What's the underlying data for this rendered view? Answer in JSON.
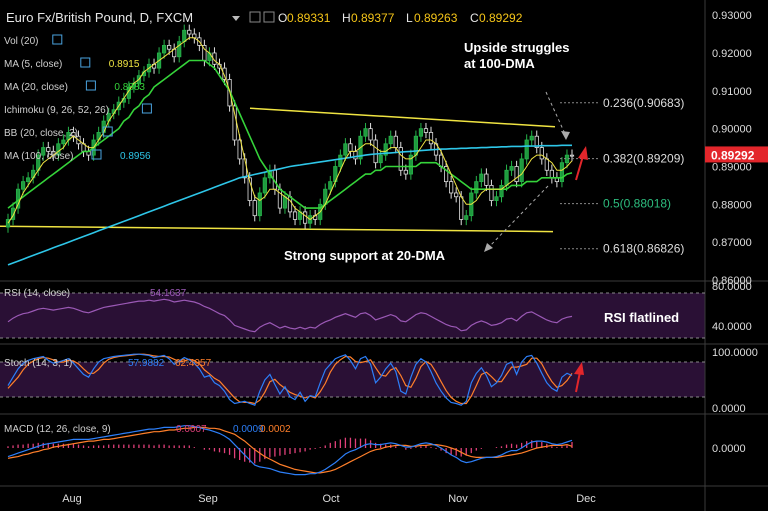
{
  "header": {
    "title": "Euro Fx/British Pound, D, FXCM",
    "ohlc": {
      "o_label": "O",
      "o": "0.89331",
      "h_label": "H",
      "h": "0.89377",
      "l_label": "L",
      "l": "0.89263",
      "c_label": "C",
      "c": "0.89292"
    }
  },
  "indicators": [
    {
      "label": "Vol (20)",
      "value": "",
      "color": "#cfcfcf"
    },
    {
      "label": "MA (5, close)",
      "value": "0.8915",
      "color": "#f0e442"
    },
    {
      "label": "MA (20, close)",
      "value": "0.8883",
      "color": "#35d33a"
    },
    {
      "label": "Ichimoku (9, 26, 52, 26)",
      "value": "",
      "color": "#cfcfcf"
    },
    {
      "label": "BB (20, close, 2)",
      "value": "",
      "color": "#cfcfcf"
    },
    {
      "label": "MA (100, close)",
      "value": "0.8956",
      "color": "#2ec6e8"
    }
  ],
  "annotations": {
    "upside_line1": "Upside struggles",
    "upside_line2": "at 100-DMA",
    "support": "Strong support at 20-DMA",
    "rsi_flat": "RSI flatlined"
  },
  "fib_levels": [
    {
      "label": "0.236(0.90683)",
      "value": 0.90683,
      "color": "#dddddd"
    },
    {
      "label": "0.382(0.89209)",
      "value": 0.89209,
      "color": "#dddddd"
    },
    {
      "label": "0.5(0.88018)",
      "value": 0.88018,
      "color": "#2dbd7e"
    },
    {
      "label": "0.618(0.86826)",
      "value": 0.86826,
      "color": "#dddddd"
    }
  ],
  "price_badge": {
    "text": "0.89292",
    "value": 0.89292,
    "color": "#e3262b"
  },
  "rsi_panel": {
    "label": "RSI (14, close)",
    "value": "54.1637",
    "ticks": [
      "80.0000",
      "40.0000"
    ],
    "color": "#9b59b6"
  },
  "stoch_panel": {
    "label": "Stoch (14, 3, 1)",
    "k": "57.9882",
    "d": "62.4957",
    "ticks": [
      "100.0000",
      "0.0000"
    ],
    "k_color": "#2d7ff9",
    "d_color": "#ff7f2a"
  },
  "macd_panel": {
    "label": "MACD (12, 26, close, 9)",
    "hist": "0.0007",
    "macd": "0.0009",
    "signal": "0.0002",
    "ticks": [
      "0.0000"
    ],
    "hist_color": "#e0407a",
    "macd_color": "#2d7ff9",
    "signal_color": "#ff7f2a"
  },
  "chart_data": {
    "type": "candlestick",
    "symbol": "EUR/GBP",
    "timeframe": "D",
    "x_ticks": [
      "Aug",
      "Sep",
      "Oct",
      "Nov",
      "Dec"
    ],
    "y_ticks": [
      "0.93000",
      "0.92000",
      "0.91000",
      "0.90000",
      "0.89000",
      "0.88000",
      "0.87000",
      "0.86000"
    ],
    "ylim": [
      0.86,
      0.934
    ],
    "close": [
      0.876,
      0.879,
      0.884,
      0.886,
      0.887,
      0.889,
      0.893,
      0.895,
      0.894,
      0.893,
      0.896,
      0.897,
      0.899,
      0.898,
      0.896,
      0.894,
      0.893,
      0.897,
      0.899,
      0.902,
      0.904,
      0.905,
      0.907,
      0.908,
      0.911,
      0.912,
      0.914,
      0.915,
      0.917,
      0.916,
      0.92,
      0.922,
      0.921,
      0.919,
      0.923,
      0.926,
      0.925,
      0.924,
      0.922,
      0.918,
      0.92,
      0.917,
      0.916,
      0.913,
      0.906,
      0.897,
      0.892,
      0.887,
      0.881,
      0.877,
      0.883,
      0.887,
      0.889,
      0.884,
      0.879,
      0.882,
      0.878,
      0.876,
      0.878,
      0.875,
      0.877,
      0.876,
      0.88,
      0.884,
      0.886,
      0.89,
      0.893,
      0.896,
      0.894,
      0.892,
      0.898,
      0.9,
      0.897,
      0.891,
      0.893,
      0.896,
      0.898,
      0.895,
      0.889,
      0.888,
      0.893,
      0.898,
      0.9,
      0.899,
      0.896,
      0.893,
      0.89,
      0.886,
      0.883,
      0.882,
      0.876,
      0.877,
      0.883,
      0.886,
      0.888,
      0.885,
      0.881,
      0.882,
      0.885,
      0.889,
      0.89,
      0.886,
      0.892,
      0.897,
      0.898,
      0.895,
      0.892,
      0.889,
      0.887,
      0.886,
      0.891,
      0.893,
      0.8929
    ],
    "ma5": [
      0.875,
      0.877,
      0.88,
      0.883,
      0.885,
      0.887,
      0.889,
      0.891,
      0.892,
      0.893,
      0.894,
      0.895,
      0.897,
      0.898,
      0.897,
      0.896,
      0.895,
      0.895,
      0.897,
      0.899,
      0.902,
      0.904,
      0.906,
      0.908,
      0.91,
      0.912,
      0.913,
      0.915,
      0.916,
      0.917,
      0.918,
      0.919,
      0.92,
      0.921,
      0.922,
      0.923,
      0.924,
      0.924,
      0.923,
      0.921,
      0.92,
      0.918,
      0.917,
      0.914,
      0.91,
      0.904,
      0.898,
      0.892,
      0.886,
      0.882,
      0.881,
      0.882,
      0.884,
      0.884,
      0.883,
      0.882,
      0.881,
      0.879,
      0.878,
      0.877,
      0.876,
      0.877,
      0.878,
      0.88,
      0.883,
      0.886,
      0.889,
      0.892,
      0.894,
      0.894,
      0.895,
      0.896,
      0.896,
      0.895,
      0.894,
      0.894,
      0.895,
      0.895,
      0.893,
      0.892,
      0.892,
      0.893,
      0.895,
      0.897,
      0.897,
      0.896,
      0.894,
      0.891,
      0.888,
      0.885,
      0.882,
      0.88,
      0.88,
      0.881,
      0.883,
      0.884,
      0.884,
      0.884,
      0.884,
      0.885,
      0.886,
      0.887,
      0.888,
      0.89,
      0.892,
      0.893,
      0.893,
      0.892,
      0.891,
      0.889,
      0.889,
      0.89,
      0.8915
    ],
    "ma20": [
      0.879,
      0.88,
      0.881,
      0.882,
      0.883,
      0.884,
      0.885,
      0.886,
      0.887,
      0.888,
      0.889,
      0.89,
      0.891,
      0.892,
      0.893,
      0.894,
      0.894,
      0.895,
      0.896,
      0.897,
      0.898,
      0.899,
      0.9,
      0.902,
      0.903,
      0.905,
      0.906,
      0.908,
      0.909,
      0.911,
      0.912,
      0.913,
      0.914,
      0.915,
      0.916,
      0.917,
      0.918,
      0.918,
      0.918,
      0.918,
      0.917,
      0.916,
      0.914,
      0.912,
      0.91,
      0.907,
      0.904,
      0.901,
      0.898,
      0.895,
      0.892,
      0.89,
      0.888,
      0.886,
      0.884,
      0.883,
      0.882,
      0.881,
      0.88,
      0.879,
      0.879,
      0.879,
      0.879,
      0.88,
      0.881,
      0.882,
      0.883,
      0.884,
      0.885,
      0.886,
      0.887,
      0.888,
      0.888,
      0.889,
      0.889,
      0.89,
      0.89,
      0.89,
      0.89,
      0.89,
      0.89,
      0.89,
      0.891,
      0.891,
      0.891,
      0.891,
      0.89,
      0.889,
      0.888,
      0.887,
      0.886,
      0.885,
      0.884,
      0.884,
      0.884,
      0.884,
      0.884,
      0.884,
      0.884,
      0.884,
      0.885,
      0.885,
      0.885,
      0.886,
      0.886,
      0.886,
      0.887,
      0.887,
      0.887,
      0.887,
      0.887,
      0.888,
      0.8883
    ],
    "ma100": [
      0.864,
      0.8645,
      0.865,
      0.8655,
      0.866,
      0.8665,
      0.867,
      0.8675,
      0.868,
      0.8685,
      0.869,
      0.8695,
      0.87,
      0.8705,
      0.871,
      0.8715,
      0.872,
      0.8725,
      0.873,
      0.8735,
      0.874,
      0.8745,
      0.875,
      0.8755,
      0.876,
      0.8765,
      0.877,
      0.8775,
      0.878,
      0.8785,
      0.879,
      0.8795,
      0.88,
      0.8805,
      0.881,
      0.8815,
      0.882,
      0.8825,
      0.883,
      0.8835,
      0.884,
      0.8845,
      0.885,
      0.8855,
      0.886,
      0.8865,
      0.887,
      0.8873,
      0.8876,
      0.8879,
      0.8882,
      0.8885,
      0.8888,
      0.8891,
      0.8894,
      0.8897,
      0.89,
      0.8902,
      0.8904,
      0.8906,
      0.8908,
      0.891,
      0.8912,
      0.8914,
      0.8916,
      0.8918,
      0.892,
      0.8922,
      0.8924,
      0.8926,
      0.8928,
      0.893,
      0.8932,
      0.8933,
      0.8934,
      0.8935,
      0.8936,
      0.8937,
      0.8938,
      0.8939,
      0.894,
      0.8941,
      0.8942,
      0.8943,
      0.8944,
      0.8945,
      0.8946,
      0.8946,
      0.8947,
      0.8947,
      0.8948,
      0.8948,
      0.8949,
      0.8949,
      0.895,
      0.895,
      0.8951,
      0.8951,
      0.8952,
      0.8952,
      0.8953,
      0.8953,
      0.8953,
      0.8954,
      0.8954,
      0.8954,
      0.8955,
      0.8955,
      0.8955,
      0.8955,
      0.8956,
      0.8956,
      0.8956
    ],
    "upper_trendline": [
      [
        0.9054,
        250
      ],
      [
        0.9005,
        555
      ]
    ],
    "lower_trendline": [
      [
        0.8742,
        0
      ],
      [
        0.8728,
        553
      ]
    ],
    "rsi": [
      48,
      52,
      55,
      57,
      58,
      60,
      62,
      63,
      62,
      61,
      62,
      63,
      64,
      63,
      61,
      59,
      58,
      60,
      62,
      64,
      65,
      66,
      67,
      68,
      69,
      70,
      71,
      71,
      72,
      71,
      72,
      73,
      72,
      70,
      71,
      72,
      71,
      70,
      68,
      65,
      63,
      60,
      57,
      55,
      50,
      44,
      42,
      40,
      38,
      37,
      42,
      45,
      47,
      44,
      41,
      43,
      41,
      40,
      42,
      40,
      42,
      41,
      45,
      48,
      50,
      53,
      55,
      57,
      55,
      53,
      57,
      58,
      55,
      50,
      52,
      54,
      56,
      54,
      49,
      48,
      52,
      56,
      58,
      57,
      54,
      51,
      48,
      45,
      43,
      42,
      38,
      39,
      44,
      47,
      49,
      47,
      44,
      45,
      47,
      51,
      52,
      49,
      54,
      58,
      59,
      56,
      53,
      50,
      48,
      47,
      51,
      53,
      54
    ],
    "stoch_k": [
      40,
      55,
      70,
      80,
      85,
      88,
      90,
      92,
      85,
      80,
      82,
      85,
      88,
      80,
      70,
      60,
      55,
      70,
      82,
      88,
      90,
      92,
      93,
      94,
      95,
      96,
      96,
      95,
      94,
      90,
      92,
      94,
      88,
      78,
      84,
      90,
      86,
      80,
      70,
      55,
      58,
      45,
      40,
      30,
      15,
      8,
      10,
      12,
      8,
      5,
      30,
      50,
      60,
      42,
      25,
      38,
      20,
      15,
      28,
      12,
      22,
      20,
      45,
      68,
      78,
      88,
      92,
      95,
      85,
      70,
      88,
      92,
      78,
      45,
      55,
      70,
      80,
      65,
      30,
      25,
      55,
      78,
      88,
      82,
      65,
      45,
      30,
      18,
      10,
      8,
      5,
      12,
      45,
      62,
      72,
      58,
      38,
      45,
      58,
      78,
      82,
      60,
      82,
      92,
      94,
      80,
      62,
      45,
      35,
      30,
      55,
      62,
      58
    ],
    "stoch_d": [
      35,
      45,
      55,
      68,
      78,
      84,
      88,
      90,
      89,
      86,
      82,
      82,
      85,
      84,
      79,
      70,
      62,
      62,
      69,
      80,
      87,
      90,
      92,
      93,
      94,
      95,
      96,
      96,
      95,
      93,
      92,
      92,
      91,
      87,
      83,
      84,
      87,
      85,
      79,
      68,
      61,
      53,
      48,
      38,
      28,
      18,
      11,
      10,
      10,
      8,
      14,
      28,
      47,
      51,
      42,
      35,
      28,
      24,
      21,
      18,
      21,
      18,
      29,
      44,
      64,
      78,
      86,
      92,
      91,
      83,
      81,
      83,
      86,
      72,
      59,
      57,
      68,
      72,
      58,
      40,
      37,
      53,
      74,
      83,
      78,
      64,
      47,
      31,
      19,
      12,
      8,
      8,
      21,
      40,
      60,
      64,
      56,
      47,
      47,
      60,
      73,
      73,
      75,
      78,
      89,
      89,
      79,
      62,
      47,
      37,
      40,
      49,
      62
    ],
    "macd": [
      -0.001,
      -0.0008,
      -0.0006,
      -0.0004,
      -0.0002,
      0.0,
      0.0002,
      0.0004,
      0.0005,
      0.0006,
      0.0007,
      0.0008,
      0.0009,
      0.001,
      0.001,
      0.001,
      0.001,
      0.0011,
      0.0012,
      0.0013,
      0.0014,
      0.0015,
      0.0016,
      0.0017,
      0.0018,
      0.0019,
      0.002,
      0.0021,
      0.0022,
      0.0022,
      0.0023,
      0.0024,
      0.0024,
      0.0024,
      0.0025,
      0.0026,
      0.0026,
      0.0025,
      0.0024,
      0.0022,
      0.0021,
      0.0019,
      0.0017,
      0.0014,
      0.001,
      0.0004,
      -0.0002,
      -0.0008,
      -0.0014,
      -0.002,
      -0.0022,
      -0.0023,
      -0.0024,
      -0.0026,
      -0.0028,
      -0.0029,
      -0.003,
      -0.0031,
      -0.0031,
      -0.0031,
      -0.003,
      -0.003,
      -0.0028,
      -0.0025,
      -0.0021,
      -0.0017,
      -0.0012,
      -0.0007,
      -0.0004,
      -0.0002,
      0.0001,
      0.0004,
      0.0005,
      0.0004,
      0.0004,
      0.0005,
      0.0006,
      0.0005,
      0.0003,
      0.0001,
      0.0001,
      0.0003,
      0.0005,
      0.0006,
      0.0005,
      0.0003,
      0.0,
      -0.0004,
      -0.0008,
      -0.0011,
      -0.0015,
      -0.0017,
      -0.0016,
      -0.0014,
      -0.0012,
      -0.0011,
      -0.0011,
      -0.001,
      -0.0008,
      -0.0005,
      -0.0003,
      -0.0003,
      0.0,
      0.0004,
      0.0007,
      0.0008,
      0.0008,
      0.0007,
      0.0005,
      0.0004,
      0.0005,
      0.0007,
      0.0009
    ],
    "signal": [
      -0.0012,
      -0.0011,
      -0.001,
      -0.0008,
      -0.0007,
      -0.0005,
      -0.0004,
      -0.0002,
      -0.0001,
      0.0001,
      0.0002,
      0.0003,
      0.0004,
      0.0005,
      0.0006,
      0.0007,
      0.0008,
      0.0008,
      0.0009,
      0.001,
      0.001,
      0.0011,
      0.0012,
      0.0013,
      0.0014,
      0.0015,
      0.0016,
      0.0017,
      0.0018,
      0.0019,
      0.0019,
      0.002,
      0.0021,
      0.0021,
      0.0022,
      0.0023,
      0.0023,
      0.0024,
      0.0024,
      0.0024,
      0.0023,
      0.0023,
      0.0022,
      0.002,
      0.0018,
      0.0016,
      0.0012,
      0.0008,
      0.0003,
      -0.0002,
      -0.0006,
      -0.001,
      -0.0013,
      -0.0016,
      -0.0019,
      -0.0021,
      -0.0023,
      -0.0025,
      -0.0026,
      -0.0027,
      -0.0028,
      -0.0029,
      -0.0029,
      -0.0028,
      -0.0027,
      -0.0025,
      -0.0022,
      -0.0019,
      -0.0016,
      -0.0013,
      -0.001,
      -0.0007,
      -0.0004,
      -0.0002,
      -0.0001,
      0.0001,
      0.0002,
      0.0003,
      0.0003,
      0.0003,
      0.0002,
      0.0002,
      0.0003,
      0.0003,
      0.0004,
      0.0004,
      0.0003,
      0.0002,
      0.0,
      -0.0002,
      -0.0005,
      -0.0008,
      -0.001,
      -0.0011,
      -0.0011,
      -0.0011,
      -0.0011,
      -0.0011,
      -0.001,
      -0.0009,
      -0.0008,
      -0.0007,
      -0.0006,
      -0.0004,
      -0.0002,
      0.0,
      0.0001,
      0.0002,
      0.0003,
      0.0003,
      0.0003,
      0.0004,
      0.0002
    ]
  }
}
